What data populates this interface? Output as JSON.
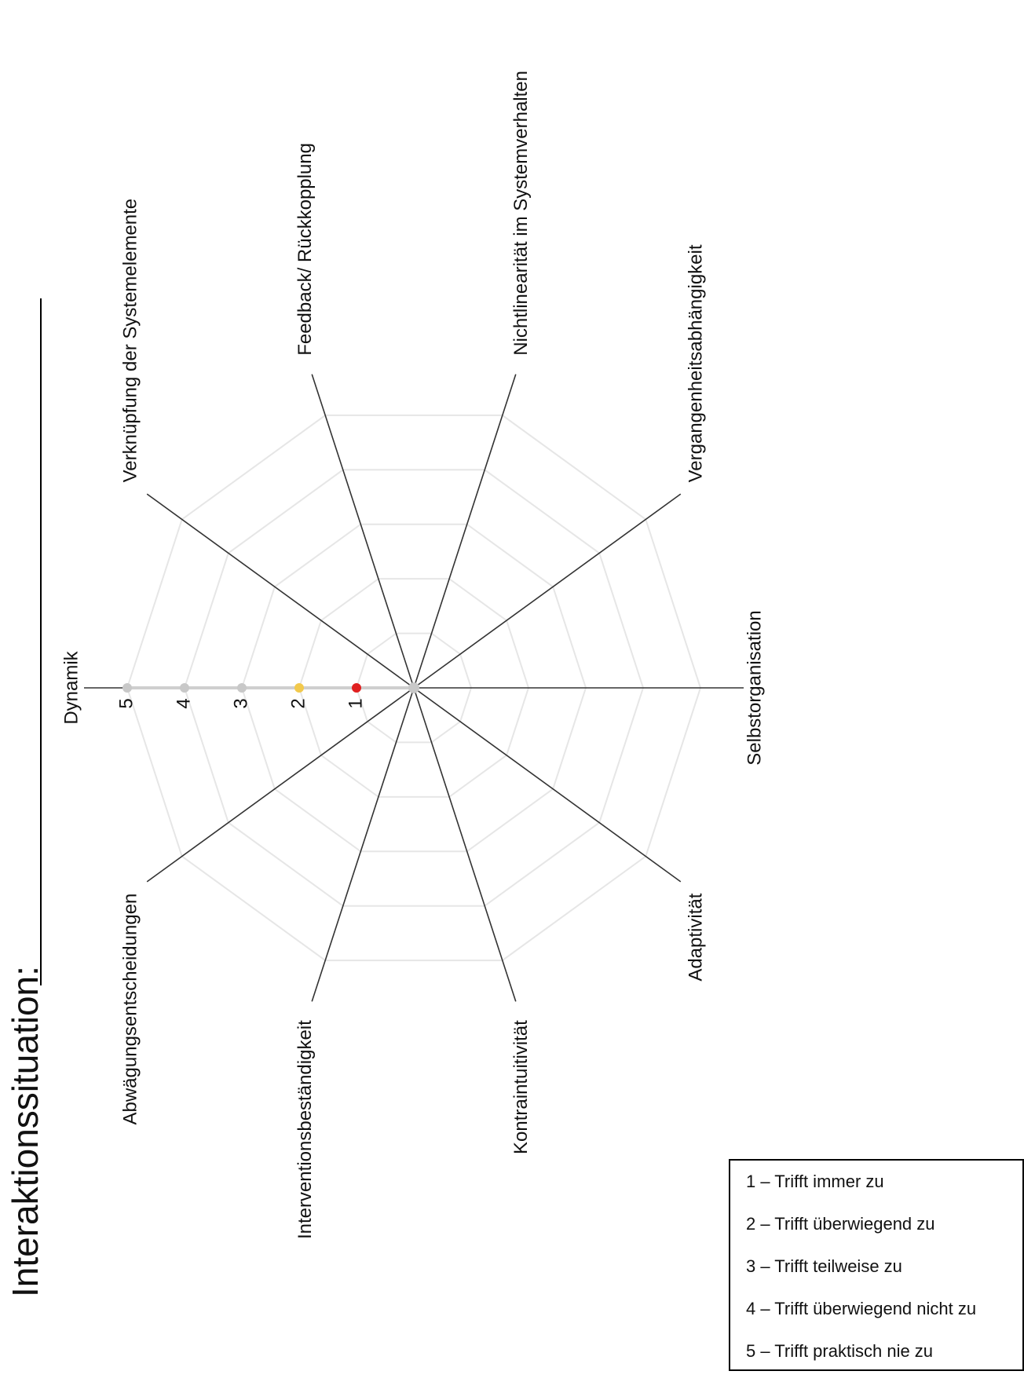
{
  "page_title": "Interaktionssituation:",
  "chart_data": {
    "type": "radar",
    "title": "",
    "axes": [
      "Dynamik",
      "Verknüpfung der Systemelemente",
      "Feedback/ Rückkopplung",
      "Nichtlinearität im Systemverhalten",
      "Vergangenheitsabhängigkeit",
      "Selbstorganisation",
      "Adaptivität",
      "Kontraintuitivität",
      "Interventionsbeständigkeit",
      "Abwägungsentscheidungen"
    ],
    "scale": {
      "min": 0,
      "max": 5,
      "ticks": [
        1,
        2,
        3,
        4,
        5
      ]
    },
    "scale_axis": "Dynamik",
    "grid": true,
    "grid_shape": "decagon",
    "rotation_deg": -90,
    "scale_marker_colors": {
      "1": "#e02020",
      "2": "#f2c94c",
      "3": "#c8c8c8",
      "4": "#c8c8c8",
      "5": "#c8c8c8"
    },
    "center_marker_color": "#c8c8c8",
    "scale_line_color": "#cfcfcf",
    "axis_color": "#333333",
    "grid_color": "#e6e6e6"
  },
  "legend": {
    "placement": "bottom-right",
    "items": [
      "1 – Trifft immer zu",
      "2 – Trifft überwiegend zu",
      "3 – Trifft teilweise zu",
      "4 – Trifft überwiegend nicht zu",
      "5 – Trifft praktisch nie zu"
    ]
  }
}
